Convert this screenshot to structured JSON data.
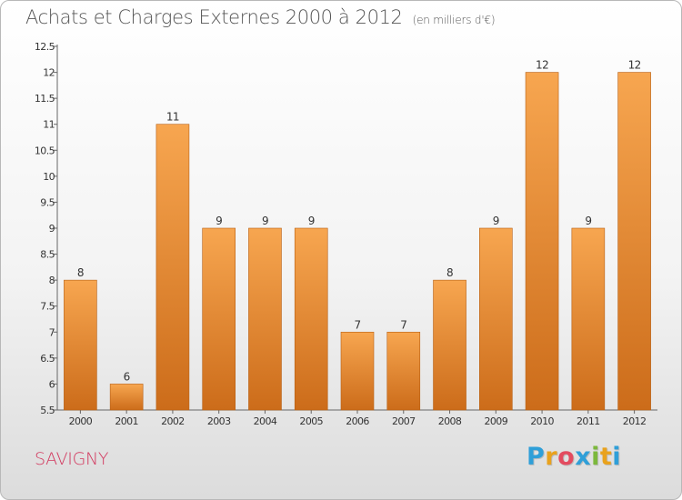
{
  "header": {
    "title": "Achats et Charges Externes 2000 à 2012",
    "unit": "(en milliers d'€)"
  },
  "footer": {
    "city": "SAVIGNY",
    "logo": {
      "letters": [
        "P",
        "r",
        "o",
        "x",
        "i",
        "t",
        "i"
      ],
      "colors": [
        "#2f9fd8",
        "#e9a21d",
        "#e34b5f",
        "#2f9fd8",
        "#7cb83c",
        "#e9a21d",
        "#2f9fd8"
      ]
    }
  },
  "colors": {
    "bar_light": "#f7a650",
    "bar_dark": "#cc6c1a",
    "city": "#d2395f"
  },
  "chart_data": {
    "type": "bar",
    "title": "Achats et Charges Externes 2000 à 2012",
    "subtitle": "(en milliers d'€)",
    "categories": [
      "2000",
      "2001",
      "2002",
      "2003",
      "2004",
      "2005",
      "2006",
      "2007",
      "2008",
      "2009",
      "2010",
      "2011",
      "2012"
    ],
    "values": [
      8,
      6,
      11,
      9,
      9,
      9,
      7,
      7,
      8,
      9,
      12,
      9,
      12
    ],
    "data_labels": [
      "8",
      "6",
      "11",
      "9",
      "9",
      "9",
      "7",
      "7",
      "8",
      "9",
      "12",
      "9",
      "12"
    ],
    "ylim": [
      5.5,
      12.5
    ],
    "yticks": [
      "5.5",
      "6",
      "6.5",
      "7",
      "7.5",
      "8",
      "8.5",
      "9",
      "9.5",
      "10",
      "10.5",
      "11",
      "11.5",
      "12",
      "12.5"
    ],
    "grid": false,
    "legend": "none"
  }
}
